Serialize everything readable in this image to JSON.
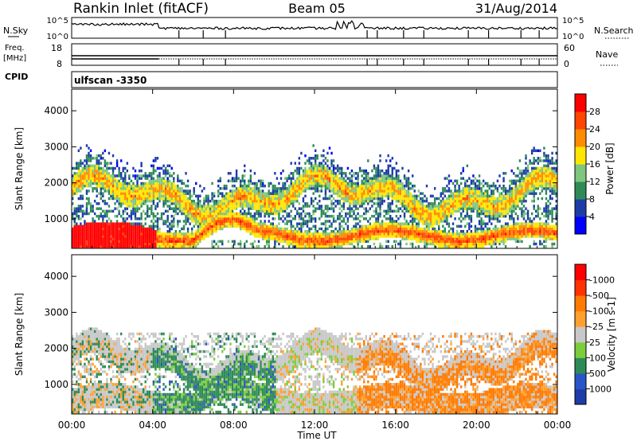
{
  "header": {
    "station": "Rankin Inlet (fitACF)",
    "beam": "Beam 05",
    "date": "31/Aug/2014"
  },
  "noise_panel": {
    "left_label": "N.Sky",
    "right_label": "N.Search",
    "left_ticks": [
      "10^5",
      "10^0"
    ],
    "right_ticks": [
      "10^5",
      "10^0"
    ]
  },
  "freq_panel": {
    "left_label_1": "Freq.",
    "left_label_2": "[MHz]",
    "right_label": "Nave",
    "left_ticks": [
      "18",
      "8"
    ],
    "right_ticks": [
      "60",
      "0"
    ]
  },
  "cpid": {
    "label": "CPID",
    "value": "ulfscan -3350"
  },
  "colors": {
    "power": [
      "#0000ff",
      "#1e3ca8",
      "#2e8b57",
      "#7fc77f",
      "#ffe600",
      "#ff8c00",
      "#ff4500",
      "#ff0000"
    ],
    "velocity": [
      "#1e3ca8",
      "#2a55c8",
      "#2e8b57",
      "#7ccd3c",
      "#c8c8c8",
      "#ffa030",
      "#ff7a00",
      "#ff3300",
      "#ff0000"
    ]
  },
  "chart_data": [
    {
      "type": "heatmap",
      "quantity": "Power",
      "xlabel": "Time UT",
      "ylabel": "Slant Range [km]",
      "xlim_hours": [
        0,
        24
      ],
      "ylim": [
        180,
        4600
      ],
      "yticks": [
        1000,
        2000,
        3000,
        4000
      ],
      "ytick_labels": [
        "1000",
        "2000",
        "3000",
        "4000"
      ],
      "colorbar_label": "Power [dB]",
      "colorbar_ticks": [
        "4",
        "8",
        "12",
        "16",
        "20",
        "24",
        "28"
      ],
      "colorbar_range": [
        0,
        30
      ]
    },
    {
      "type": "heatmap",
      "quantity": "Velocity",
      "xlabel": "Time UT",
      "ylabel": "Slant Range [km]",
      "xlim_hours": [
        0,
        24
      ],
      "ylim": [
        180,
        4600
      ],
      "yticks": [
        1000,
        2000,
        3000,
        4000
      ],
      "ytick_labels": [
        "1000",
        "2000",
        "3000",
        "4000"
      ],
      "colorbar_label": "Velocity [m s-1]",
      "colorbar_ticks": [
        "1000",
        "500",
        "100",
        "25",
        "-25",
        "-100",
        "-500",
        "-1000"
      ],
      "x_tick_labels": [
        "00:00",
        "04:00",
        "08:00",
        "12:00",
        "16:00",
        "20:00",
        "00:00"
      ]
    }
  ]
}
